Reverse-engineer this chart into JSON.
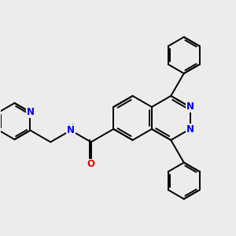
{
  "background_color": "#ececec",
  "bond_color": "#000000",
  "N_color": "#0000ee",
  "O_color": "#ee0000",
  "H_color": "#7a9a9a",
  "line_width": 1.4,
  "figsize": [
    3.0,
    3.0
  ],
  "dpi": 100,
  "xlim": [
    -4.5,
    4.5
  ],
  "ylim": [
    -3.5,
    3.5
  ]
}
